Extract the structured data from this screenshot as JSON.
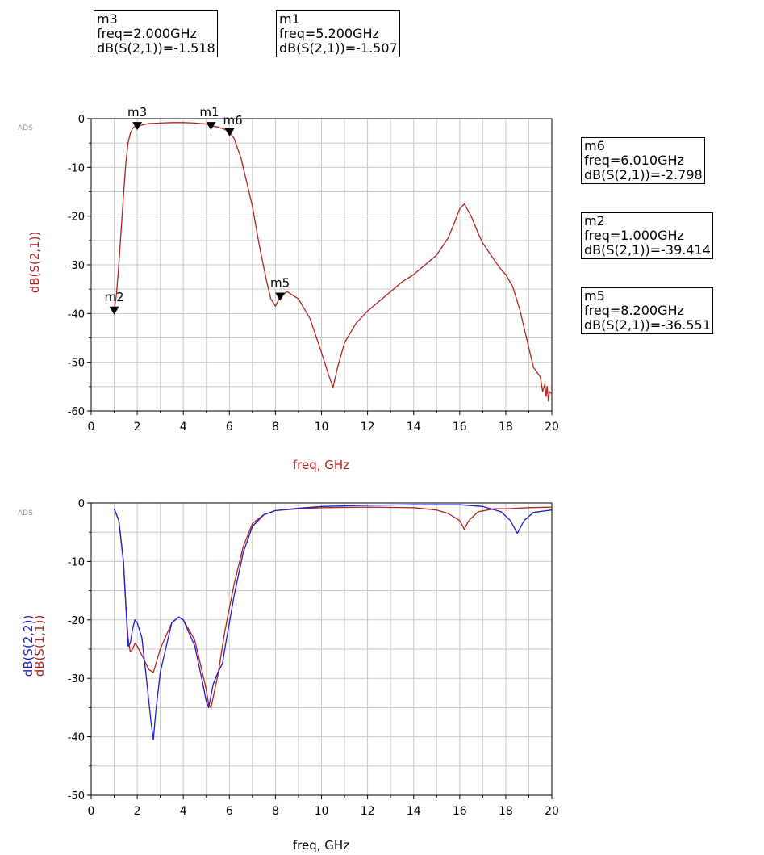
{
  "logo_text": "ADS",
  "marker_boxes": [
    {
      "id": "m3",
      "lines": [
        "m3",
        "freq=2.000GHz",
        "dB(S(2,1))=-1.518"
      ]
    },
    {
      "id": "m1",
      "lines": [
        "m1",
        "freq=5.200GHz",
        "dB(S(2,1))=-1.507"
      ]
    },
    {
      "id": "m6",
      "lines": [
        "m6",
        "freq=6.010GHz",
        "dB(S(2,1))=-2.798"
      ]
    },
    {
      "id": "m2",
      "lines": [
        "m2",
        "freq=1.000GHz",
        "dB(S(2,1))=-39.414"
      ]
    },
    {
      "id": "m5",
      "lines": [
        "m5",
        "freq=8.200GHz",
        "dB(S(2,1))=-36.551"
      ]
    }
  ],
  "chart_data": [
    {
      "type": "line",
      "xlabel": "freq, GHz",
      "ylabel": "dB(S(2,1))",
      "xlim": [
        0,
        20
      ],
      "ylim": [
        -60,
        0
      ],
      "xticks": [
        0,
        2,
        4,
        6,
        8,
        10,
        12,
        14,
        16,
        18,
        20
      ],
      "yticks": [
        0,
        -10,
        -20,
        -30,
        -40,
        -50,
        -60
      ],
      "grid": true,
      "series": [
        {
          "name": "dB(S(2,1))",
          "color": "#b22222",
          "x": [
            1.0,
            1.1,
            1.2,
            1.3,
            1.4,
            1.5,
            1.6,
            1.7,
            1.8,
            1.9,
            2.0,
            2.5,
            3.0,
            3.5,
            4.0,
            4.5,
            5.0,
            5.2,
            5.5,
            5.8,
            6.01,
            6.2,
            6.5,
            7.0,
            7.3,
            7.6,
            7.8,
            8.0,
            8.2,
            8.5,
            9.0,
            9.5,
            10.0,
            10.3,
            10.5,
            10.7,
            11.0,
            11.5,
            12.0,
            12.5,
            13.0,
            13.5,
            14.0,
            14.5,
            15.0,
            15.5,
            15.8,
            16.0,
            16.2,
            16.5,
            16.8,
            17.0,
            17.5,
            17.8,
            18.0,
            18.3,
            18.6,
            18.9,
            19.2,
            19.5,
            19.6,
            19.7,
            19.75,
            19.8,
            19.85,
            19.9,
            20.0
          ],
          "y": [
            -39.4,
            -36.0,
            -30.0,
            -23.0,
            -16.0,
            -9.5,
            -5.0,
            -3.0,
            -2.0,
            -1.6,
            -1.5,
            -1.0,
            -0.9,
            -0.8,
            -0.8,
            -0.9,
            -1.1,
            -1.5,
            -1.7,
            -2.2,
            -2.8,
            -4.0,
            -8.0,
            -18.0,
            -26.0,
            -33.0,
            -37.0,
            -38.5,
            -36.6,
            -35.5,
            -37.0,
            -41.0,
            -48.0,
            -52.5,
            -55.2,
            -51.0,
            -46.0,
            -42.0,
            -39.5,
            -37.5,
            -35.5,
            -33.5,
            -32.0,
            -30.0,
            -28.0,
            -24.5,
            -21.0,
            -18.5,
            -17.5,
            -20.0,
            -23.5,
            -25.5,
            -29.0,
            -31.0,
            -32.0,
            -34.5,
            -39.0,
            -45.0,
            -51.0,
            -53.0,
            -56.0,
            -54.5,
            -57.0,
            -55.0,
            -58.0,
            -56.0,
            -56.5
          ]
        }
      ]
    },
    {
      "type": "line",
      "xlabel": "freq, GHz",
      "ylabel": "",
      "xlim": [
        0,
        20
      ],
      "ylim": [
        -50,
        0
      ],
      "xticks": [
        0,
        2,
        4,
        6,
        8,
        10,
        12,
        14,
        16,
        18,
        20
      ],
      "yticks": [
        0,
        -10,
        -20,
        -30,
        -40,
        -50
      ],
      "grid": true,
      "series": [
        {
          "name": "dB(S(1,1))",
          "color": "#b22222",
          "x": [
            1.0,
            1.2,
            1.4,
            1.5,
            1.6,
            1.7,
            1.8,
            1.9,
            2.0,
            2.2,
            2.5,
            2.7,
            3.0,
            3.5,
            3.8,
            4.0,
            4.5,
            4.8,
            5.0,
            5.1,
            5.2,
            5.5,
            5.8,
            6.2,
            6.6,
            7.0,
            7.5,
            8.0,
            9.0,
            10.0,
            12.0,
            14.0,
            15.0,
            15.5,
            16.0,
            16.2,
            16.4,
            16.8,
            17.5,
            18.0,
            19.0,
            20.0
          ],
          "y": [
            -1.0,
            -3.0,
            -10.0,
            -17.0,
            -23.0,
            -25.5,
            -25.0,
            -24.0,
            -24.5,
            -26.0,
            -28.5,
            -29.0,
            -25.0,
            -20.5,
            -19.5,
            -20.0,
            -23.5,
            -28.5,
            -32.0,
            -34.5,
            -35.0,
            -29.5,
            -22.0,
            -14.0,
            -7.5,
            -3.5,
            -2.0,
            -1.3,
            -1.0,
            -0.8,
            -0.7,
            -0.8,
            -1.2,
            -1.8,
            -3.0,
            -4.5,
            -3.0,
            -1.5,
            -1.0,
            -1.0,
            -0.8,
            -0.7
          ]
        },
        {
          "name": "dB(S(2,2))",
          "color": "#1c1cc8",
          "x": [
            1.0,
            1.2,
            1.4,
            1.5,
            1.6,
            1.7,
            1.8,
            1.9,
            2.0,
            2.2,
            2.4,
            2.6,
            2.7,
            2.8,
            3.0,
            3.5,
            3.8,
            4.0,
            4.5,
            4.8,
            5.0,
            5.1,
            5.3,
            5.5,
            5.7,
            5.8,
            6.2,
            6.6,
            7.0,
            7.5,
            8.0,
            9.0,
            10.0,
            12.0,
            14.0,
            16.0,
            17.0,
            17.8,
            18.2,
            18.5,
            18.8,
            19.2,
            20.0
          ],
          "y": [
            -1.0,
            -3.0,
            -10.0,
            -17.0,
            -24.5,
            -24.0,
            -21.5,
            -20.0,
            -20.5,
            -23.0,
            -30.0,
            -37.5,
            -40.5,
            -36.0,
            -29.0,
            -20.5,
            -19.5,
            -20.0,
            -24.5,
            -30.0,
            -34.0,
            -35.0,
            -31.0,
            -29.0,
            -27.5,
            -25.0,
            -16.0,
            -8.5,
            -4.0,
            -2.0,
            -1.3,
            -0.9,
            -0.6,
            -0.4,
            -0.3,
            -0.3,
            -0.6,
            -1.5,
            -3.0,
            -5.2,
            -3.0,
            -1.6,
            -1.2
          ]
        }
      ]
    }
  ],
  "markers": [
    {
      "label": "m3",
      "x": 2.0,
      "y": -1.518
    },
    {
      "label": "m1",
      "x": 5.2,
      "y": -1.507
    },
    {
      "label": "m6",
      "x": 6.01,
      "y": -2.798
    },
    {
      "label": "m2",
      "x": 1.0,
      "y": -39.414
    },
    {
      "label": "m5",
      "x": 8.2,
      "y": -36.551
    }
  ],
  "colors": {
    "s21": "#b22222",
    "s11": "#b22222",
    "s22": "#1c1cc8",
    "grid": "#c8c8c8",
    "axis": "#000000"
  }
}
